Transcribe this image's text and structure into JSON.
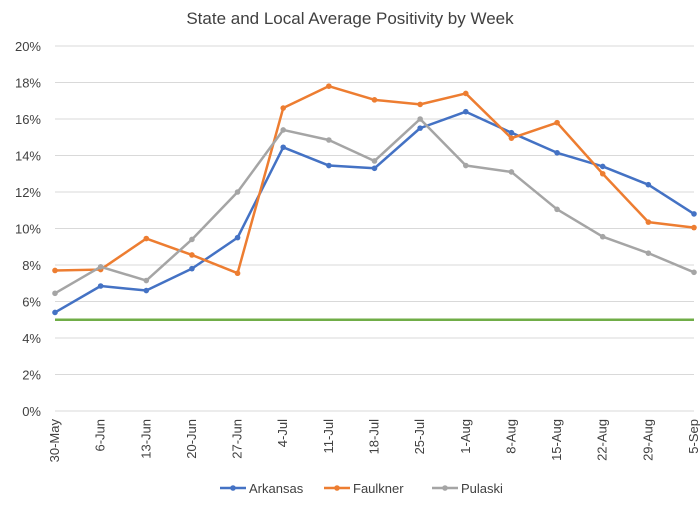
{
  "chart_data": {
    "type": "line",
    "title": "State and Local Average Positivity by Week",
    "categories": [
      "30-May",
      "6-Jun",
      "13-Jun",
      "20-Jun",
      "27-Jun",
      "4-Jul",
      "11-Jul",
      "18-Jul",
      "25-Jul",
      "1-Aug",
      "8-Aug",
      "15-Aug",
      "22-Aug",
      "29-Aug",
      "5-Sep"
    ],
    "y_ticks": [
      "0%",
      "2%",
      "4%",
      "6%",
      "8%",
      "10%",
      "12%",
      "14%",
      "16%",
      "18%",
      "20%"
    ],
    "ylim": [
      0,
      20
    ],
    "grid": true,
    "legend_position": "bottom",
    "series": [
      {
        "name": "Arkansas",
        "color": "#4472c4",
        "values": [
          5.4,
          6.85,
          6.6,
          7.8,
          9.5,
          14.45,
          13.45,
          13.3,
          15.5,
          16.4,
          15.25,
          14.15,
          13.4,
          12.4,
          10.8
        ]
      },
      {
        "name": "Faulkner",
        "color": "#ed7d31",
        "values": [
          7.7,
          7.75,
          9.45,
          8.55,
          7.55,
          16.6,
          17.8,
          17.05,
          16.8,
          17.4,
          14.95,
          15.8,
          13.0,
          10.35,
          10.05
        ]
      },
      {
        "name": "Pulaski",
        "color": "#a5a5a5",
        "values": [
          6.45,
          7.9,
          7.15,
          9.4,
          12.0,
          15.4,
          14.85,
          13.7,
          16.0,
          13.45,
          13.1,
          11.05,
          9.55,
          8.65,
          7.6
        ]
      }
    ],
    "reference_line": {
      "value": 5,
      "color": "#70ad47"
    }
  }
}
